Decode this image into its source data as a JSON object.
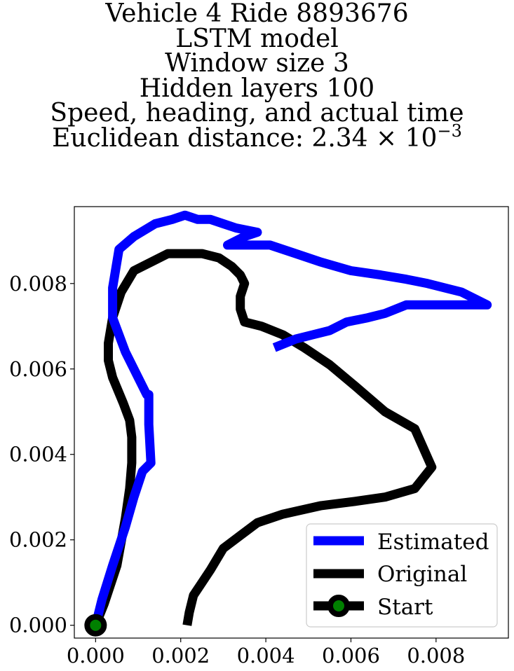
{
  "title": {
    "lines": [
      "Vehicle 4 Ride 8893676",
      "LSTM model",
      "Window size 3",
      "Hidden layers 100",
      "Speed, heading, and actual time"
    ],
    "distance_prefix": "Euclidean distance: 2.34 × 10",
    "distance_exponent": "−3"
  },
  "chart_data": {
    "type": "line",
    "xlim": [
      -0.0005,
      0.0097
    ],
    "ylim": [
      -0.0003,
      0.0098
    ],
    "xticks": [
      "0.000",
      "0.002",
      "0.004",
      "0.006",
      "0.008"
    ],
    "xtick_values": [
      0.0,
      0.002,
      0.004,
      0.006,
      0.008
    ],
    "yticks": [
      "0.000",
      "0.002",
      "0.004",
      "0.006",
      "0.008"
    ],
    "ytick_values": [
      0.0,
      0.002,
      0.004,
      0.006,
      0.008
    ],
    "legend_position": "lower-right",
    "series": [
      {
        "name": "Estimated",
        "color": "#0000ff",
        "x": [
          0.0,
          0.00015,
          0.0004,
          0.0007,
          0.0009,
          0.0011,
          0.0013,
          0.00125,
          0.00125,
          0.0012,
          0.0007,
          0.0004,
          0.0004,
          0.00055,
          0.0009,
          0.0014,
          0.0018,
          0.0021,
          0.0024,
          0.0027,
          0.003,
          0.0033,
          0.0038,
          0.0035,
          0.0031,
          0.0035,
          0.0041,
          0.0047,
          0.0053,
          0.006,
          0.0067,
          0.0073,
          0.0078,
          0.0086,
          0.0092,
          0.0087,
          0.0081,
          0.0073,
          0.0068,
          0.0064,
          0.0059,
          0.0055,
          0.0051,
          0.0047,
          0.0042
        ],
        "y": [
          0.0,
          0.0006,
          0.0014,
          0.0023,
          0.003,
          0.0036,
          0.0038,
          0.0047,
          0.0054,
          0.0054,
          0.0064,
          0.0072,
          0.0079,
          0.0088,
          0.0091,
          0.0094,
          0.0095,
          0.0096,
          0.0095,
          0.0095,
          0.0094,
          0.0093,
          0.0092,
          0.0091,
          0.0089,
          0.0089,
          0.0089,
          0.0087,
          0.0085,
          0.0083,
          0.0082,
          0.0081,
          0.008,
          0.0078,
          0.0075,
          0.0075,
          0.0075,
          0.0075,
          0.0073,
          0.0072,
          0.0071,
          0.0069,
          0.0068,
          0.0067,
          0.0065
        ]
      },
      {
        "name": "Original",
        "color": "#000000",
        "x": [
          0.0,
          0.0002,
          0.0005,
          0.0007,
          0.0008,
          0.00085,
          0.00085,
          0.0008,
          0.00065,
          0.0004,
          0.0003,
          0.0003,
          0.0004,
          0.0006,
          0.0009,
          0.0013,
          0.0017,
          0.0021,
          0.0025,
          0.0029,
          0.0032,
          0.0034,
          0.0035,
          0.0034,
          0.0034,
          0.0035,
          0.0039,
          0.0044,
          0.0049,
          0.0055,
          0.0061,
          0.0068,
          0.0075,
          0.0079,
          0.0075,
          0.0068,
          0.0061,
          0.0053,
          0.0044,
          0.0038,
          0.0034,
          0.003,
          0.0027,
          0.0025,
          0.0023,
          0.0022,
          0.00215
        ],
        "y": [
          0.0,
          0.0005,
          0.0014,
          0.0025,
          0.0032,
          0.0038,
          0.0044,
          0.0048,
          0.0052,
          0.0058,
          0.0062,
          0.0066,
          0.0072,
          0.0078,
          0.0083,
          0.0085,
          0.0087,
          0.0087,
          0.0087,
          0.0086,
          0.0084,
          0.0082,
          0.008,
          0.0077,
          0.0074,
          0.0071,
          0.007,
          0.0068,
          0.0065,
          0.0061,
          0.0056,
          0.005,
          0.0046,
          0.0037,
          0.0032,
          0.003,
          0.0029,
          0.0028,
          0.0026,
          0.0024,
          0.0021,
          0.0018,
          0.0013,
          0.001,
          0.0007,
          0.0003,
          0.0
        ]
      },
      {
        "name": "Start",
        "color": "#000000",
        "marker_face": "#008000",
        "x": [
          0.0
        ],
        "y": [
          0.0
        ]
      }
    ]
  }
}
